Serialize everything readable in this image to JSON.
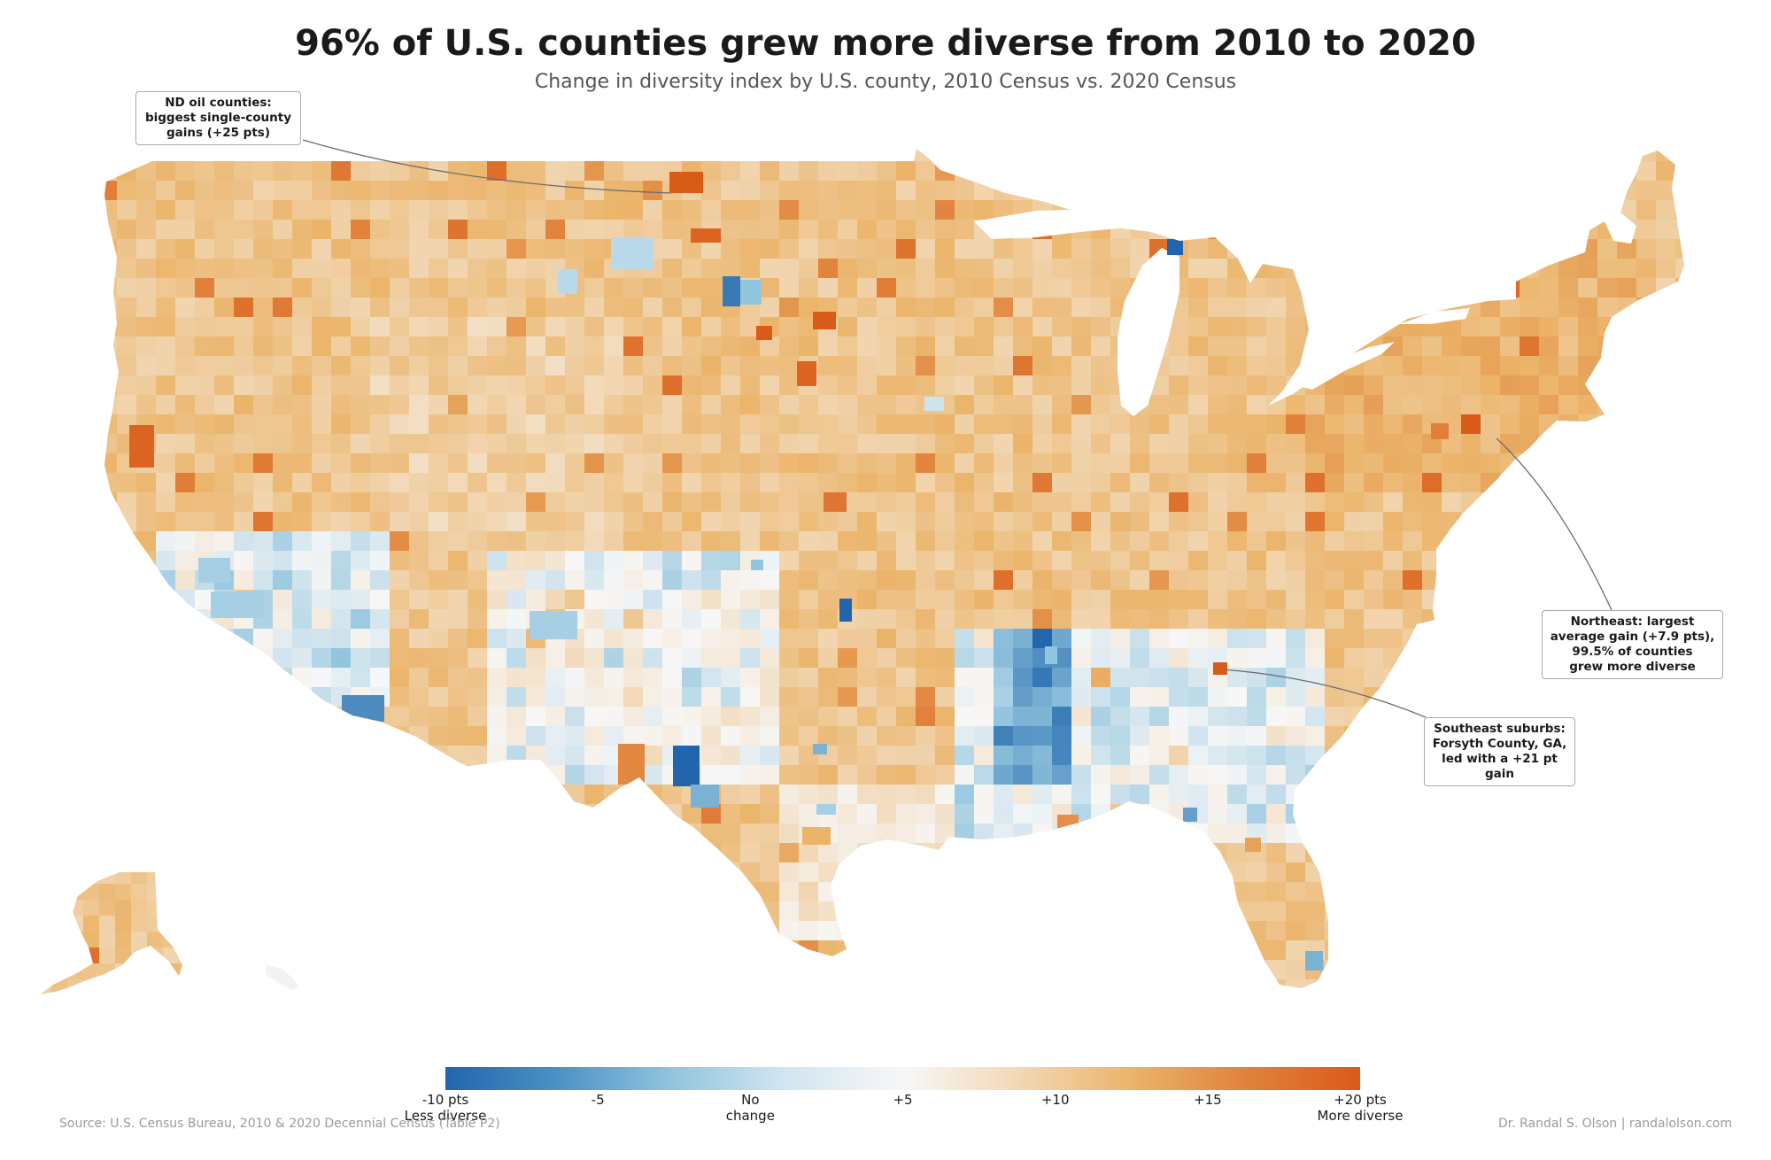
{
  "title": "96% of U.S. counties grew more diverse from 2010 to 2020",
  "subtitle": "Change in diversity index by U.S. county, 2010 Census vs. 2020 Census",
  "annotations": {
    "nd": [
      "ND oil counties:",
      "biggest single-county",
      "gains (+25 pts)"
    ],
    "northeast": [
      "Northeast: largest",
      "average gain (+7.9 pts),",
      "99.5% of counties",
      "grew more diverse"
    ],
    "southeast": [
      "Southeast suburbs:",
      "Forsyth County, GA,",
      "led with a +21 pt",
      "gain"
    ]
  },
  "legend": {
    "ticks": [
      {
        "label": "-10 pts",
        "sub": "Less diverse",
        "value": -10
      },
      {
        "label": "-5",
        "sub": "",
        "value": -5
      },
      {
        "label": "No",
        "sub": "change",
        "value": 0
      },
      {
        "label": "+5",
        "sub": "",
        "value": 5
      },
      {
        "label": "+10",
        "sub": "",
        "value": 10
      },
      {
        "label": "+15",
        "sub": "",
        "value": 15
      },
      {
        "label": "+20 pts",
        "sub": "More diverse",
        "value": 20
      }
    ],
    "range": [
      -10,
      20
    ],
    "colors": [
      "#2166ac",
      "#92c5de",
      "#f7f7f7",
      "#ebb46a",
      "#d95b18"
    ]
  },
  "footer": {
    "source": "Source: U.S. Census Bureau, 2010 & 2020 Decennial Census (Table P2)",
    "credit": "Dr. Randal S. Olson  |  randalolson.com"
  }
}
